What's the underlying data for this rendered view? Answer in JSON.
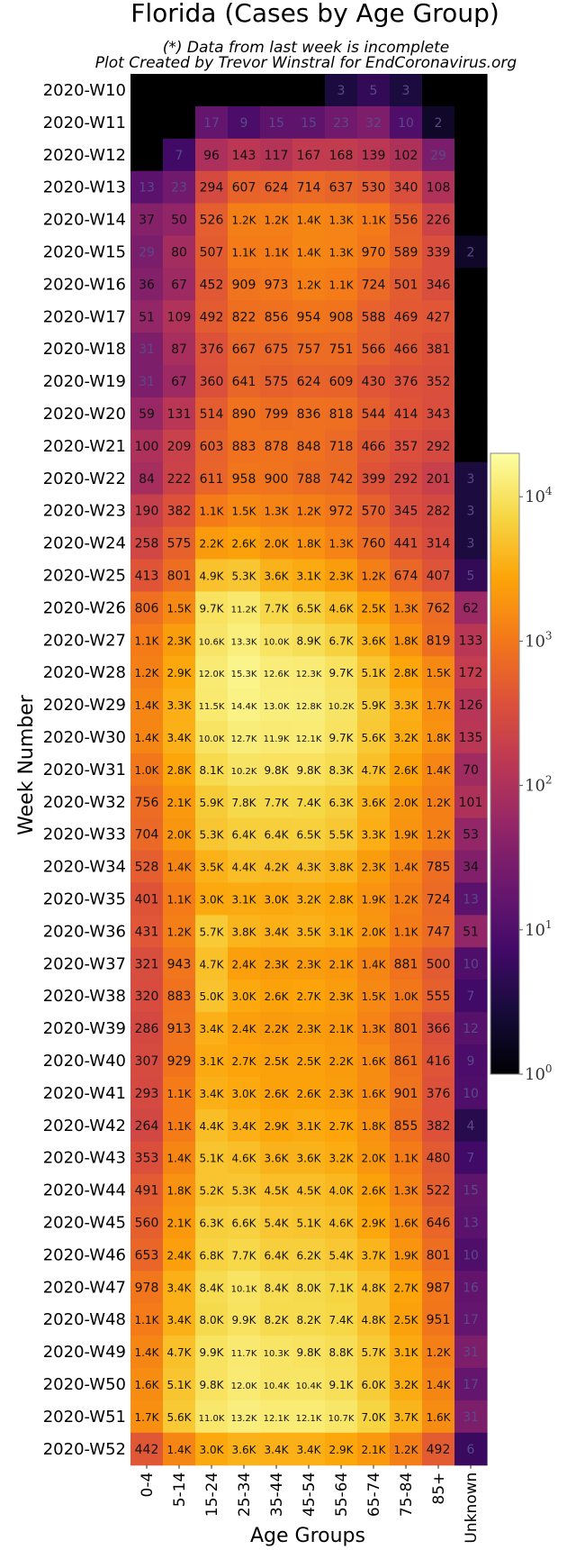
{
  "chart_data": {
    "type": "heatmap",
    "title": "Florida (Cases by Age Group)",
    "subtitle_lines": [
      "(*) Data from last week is incomplete",
      "Plot Created by Trevor Winstral for EndCoronavirus.org"
    ],
    "xlabel": "Age Groups",
    "ylabel": "Week Number",
    "x_categories": [
      "0-4",
      "5-14",
      "15-24",
      "25-34",
      "35-44",
      "45-54",
      "55-64",
      "65-74",
      "75-84",
      "85+",
      "Unknown"
    ],
    "y_categories": [
      "2020-W10",
      "2020-W11",
      "2020-W12",
      "2020-W13",
      "2020-W14",
      "2020-W15",
      "2020-W16",
      "2020-W17",
      "2020-W18",
      "2020-W19",
      "2020-W20",
      "2020-W21",
      "2020-W22",
      "2020-W23",
      "2020-W24",
      "2020-W25",
      "2020-W26",
      "2020-W27",
      "2020-W28",
      "2020-W29",
      "2020-W30",
      "2020-W31",
      "2020-W32",
      "2020-W33",
      "2020-W34",
      "2020-W35",
      "2020-W36",
      "2020-W37",
      "2020-W38",
      "2020-W39",
      "2020-W40",
      "2020-W41",
      "2020-W42",
      "2020-W43",
      "2020-W44",
      "2020-W45",
      "2020-W46",
      "2020-W47",
      "2020-W48",
      "2020-W49",
      "2020-W50",
      "2020-W51",
      "2020-W52"
    ],
    "values": [
      [
        null,
        null,
        null,
        null,
        null,
        null,
        3,
        5,
        3,
        null,
        null
      ],
      [
        null,
        null,
        17,
        9,
        15,
        15,
        23,
        32,
        10,
        2,
        null
      ],
      [
        null,
        7,
        96,
        143,
        117,
        167,
        168,
        139,
        102,
        29,
        null
      ],
      [
        13,
        23,
        294,
        607,
        624,
        714,
        637,
        530,
        340,
        108,
        null
      ],
      [
        37,
        50,
        526,
        1200,
        1200,
        1400,
        1300,
        1100,
        556,
        226,
        null
      ],
      [
        29,
        80,
        507,
        1100,
        1100,
        1400,
        1300,
        970,
        589,
        339,
        2
      ],
      [
        36,
        67,
        452,
        909,
        973,
        1200,
        1100,
        724,
        501,
        346,
        null
      ],
      [
        51,
        109,
        492,
        822,
        856,
        954,
        908,
        588,
        469,
        427,
        null
      ],
      [
        31,
        87,
        376,
        667,
        675,
        757,
        751,
        566,
        466,
        381,
        null
      ],
      [
        31,
        67,
        360,
        641,
        575,
        624,
        609,
        430,
        376,
        352,
        null
      ],
      [
        59,
        131,
        514,
        890,
        799,
        836,
        818,
        544,
        414,
        343,
        null
      ],
      [
        100,
        209,
        603,
        883,
        878,
        848,
        718,
        466,
        357,
        292,
        null
      ],
      [
        84,
        222,
        611,
        958,
        900,
        788,
        742,
        399,
        292,
        201,
        3
      ],
      [
        190,
        382,
        1100,
        1500,
        1300,
        1200,
        972,
        570,
        345,
        282,
        3
      ],
      [
        258,
        575,
        2200,
        2600,
        2000,
        1800,
        1300,
        760,
        441,
        314,
        3
      ],
      [
        413,
        801,
        4900,
        5300,
        3600,
        3100,
        2300,
        1200,
        674,
        407,
        5
      ],
      [
        806,
        1500,
        9700,
        11200,
        7700,
        6500,
        4600,
        2500,
        1300,
        762,
        62
      ],
      [
        1100,
        2300,
        10600,
        13300,
        10000,
        8900,
        6700,
        3600,
        1800,
        819,
        133
      ],
      [
        1200,
        2900,
        12000,
        15300,
        12600,
        12300,
        9700,
        5100,
        2800,
        1500,
        172
      ],
      [
        1400,
        3300,
        11500,
        14400,
        13000,
        12800,
        10200,
        5900,
        3300,
        1700,
        126
      ],
      [
        1400,
        3400,
        10000,
        12700,
        11900,
        12100,
        9700,
        5600,
        3200,
        1800,
        135
      ],
      [
        1000,
        2800,
        8100,
        10200,
        9800,
        9800,
        8300,
        4700,
        2600,
        1400,
        70
      ],
      [
        756,
        2100,
        5900,
        7800,
        7700,
        7400,
        6300,
        3600,
        2000,
        1200,
        101
      ],
      [
        704,
        2000,
        5300,
        6400,
        6400,
        6500,
        5500,
        3300,
        1900,
        1200,
        53
      ],
      [
        528,
        1400,
        3500,
        4400,
        4200,
        4300,
        3800,
        2300,
        1400,
        785,
        34
      ],
      [
        401,
        1100,
        3000,
        3100,
        3000,
        3200,
        2800,
        1900,
        1200,
        724,
        13
      ],
      [
        431,
        1200,
        5700,
        3800,
        3400,
        3500,
        3100,
        2000,
        1100,
        747,
        51
      ],
      [
        321,
        943,
        4700,
        2400,
        2300,
        2300,
        2100,
        1400,
        881,
        500,
        10
      ],
      [
        320,
        883,
        5000,
        3000,
        2600,
        2700,
        2300,
        1500,
        1000,
        555,
        7
      ],
      [
        286,
        913,
        3400,
        2400,
        2200,
        2300,
        2100,
        1300,
        801,
        366,
        12
      ],
      [
        307,
        929,
        3100,
        2700,
        2500,
        2500,
        2200,
        1600,
        861,
        416,
        9
      ],
      [
        293,
        1100,
        3400,
        3000,
        2600,
        2600,
        2300,
        1600,
        901,
        376,
        10
      ],
      [
        264,
        1100,
        4400,
        3400,
        2900,
        3100,
        2700,
        1800,
        855,
        382,
        4
      ],
      [
        353,
        1400,
        5100,
        4600,
        3600,
        3600,
        3200,
        2000,
        1100,
        480,
        7
      ],
      [
        491,
        1800,
        5200,
        5300,
        4500,
        4500,
        4000,
        2600,
        1300,
        522,
        15
      ],
      [
        560,
        2100,
        6300,
        6600,
        5400,
        5100,
        4600,
        2900,
        1600,
        646,
        13
      ],
      [
        653,
        2400,
        6800,
        7700,
        6400,
        6200,
        5400,
        3700,
        1900,
        801,
        10
      ],
      [
        978,
        3400,
        8400,
        10100,
        8400,
        8000,
        7100,
        4800,
        2700,
        987,
        16
      ],
      [
        1100,
        3400,
        8000,
        9900,
        8200,
        8200,
        7400,
        4800,
        2500,
        951,
        17
      ],
      [
        1400,
        4700,
        9900,
        11700,
        10300,
        9800,
        8800,
        5700,
        3100,
        1200,
        31
      ],
      [
        1600,
        5100,
        9800,
        12000,
        10400,
        10400,
        9100,
        6000,
        3200,
        1400,
        17
      ],
      [
        1700,
        5600,
        11000,
        13200,
        12100,
        12100,
        10700,
        7000,
        3700,
        1600,
        31
      ],
      [
        442,
        1400,
        3000,
        3600,
        3400,
        3400,
        2900,
        2100,
        1200,
        492,
        6
      ]
    ],
    "cell_labels": [
      [
        "",
        "",
        "",
        "",
        "",
        "",
        "3",
        "5",
        "3",
        "",
        ""
      ],
      [
        "",
        "",
        "17",
        "9",
        "15",
        "15",
        "23",
        "32",
        "10",
        "2",
        ""
      ],
      [
        "",
        "7",
        "96",
        "143",
        "117",
        "167",
        "168",
        "139",
        "102",
        "29",
        ""
      ],
      [
        "13",
        "23",
        "294",
        "607",
        "624",
        "714",
        "637",
        "530",
        "340",
        "108",
        ""
      ],
      [
        "37",
        "50",
        "526",
        "1.2K",
        "1.2K",
        "1.4K",
        "1.3K",
        "1.1K",
        "556",
        "226",
        ""
      ],
      [
        "29",
        "80",
        "507",
        "1.1K",
        "1.1K",
        "1.4K",
        "1.3K",
        "970",
        "589",
        "339",
        "2"
      ],
      [
        "36",
        "67",
        "452",
        "909",
        "973",
        "1.2K",
        "1.1K",
        "724",
        "501",
        "346",
        ""
      ],
      [
        "51",
        "109",
        "492",
        "822",
        "856",
        "954",
        "908",
        "588",
        "469",
        "427",
        ""
      ],
      [
        "31",
        "87",
        "376",
        "667",
        "675",
        "757",
        "751",
        "566",
        "466",
        "381",
        ""
      ],
      [
        "31",
        "67",
        "360",
        "641",
        "575",
        "624",
        "609",
        "430",
        "376",
        "352",
        ""
      ],
      [
        "59",
        "131",
        "514",
        "890",
        "799",
        "836",
        "818",
        "544",
        "414",
        "343",
        ""
      ],
      [
        "100",
        "209",
        "603",
        "883",
        "878",
        "848",
        "718",
        "466",
        "357",
        "292",
        ""
      ],
      [
        "84",
        "222",
        "611",
        "958",
        "900",
        "788",
        "742",
        "399",
        "292",
        "201",
        "3"
      ],
      [
        "190",
        "382",
        "1.1K",
        "1.5K",
        "1.3K",
        "1.2K",
        "972",
        "570",
        "345",
        "282",
        "3"
      ],
      [
        "258",
        "575",
        "2.2K",
        "2.6K",
        "2.0K",
        "1.8K",
        "1.3K",
        "760",
        "441",
        "314",
        "3"
      ],
      [
        "413",
        "801",
        "4.9K",
        "5.3K",
        "3.6K",
        "3.1K",
        "2.3K",
        "1.2K",
        "674",
        "407",
        "5"
      ],
      [
        "806",
        "1.5K",
        "9.7K",
        "11.2K",
        "7.7K",
        "6.5K",
        "4.6K",
        "2.5K",
        "1.3K",
        "762",
        "62"
      ],
      [
        "1.1K",
        "2.3K",
        "10.6K",
        "13.3K",
        "10.0K",
        "8.9K",
        "6.7K",
        "3.6K",
        "1.8K",
        "819",
        "133"
      ],
      [
        "1.2K",
        "2.9K",
        "12.0K",
        "15.3K",
        "12.6K",
        "12.3K",
        "9.7K",
        "5.1K",
        "2.8K",
        "1.5K",
        "172"
      ],
      [
        "1.4K",
        "3.3K",
        "11.5K",
        "14.4K",
        "13.0K",
        "12.8K",
        "10.2K",
        "5.9K",
        "3.3K",
        "1.7K",
        "126"
      ],
      [
        "1.4K",
        "3.4K",
        "10.0K",
        "12.7K",
        "11.9K",
        "12.1K",
        "9.7K",
        "5.6K",
        "3.2K",
        "1.8K",
        "135"
      ],
      [
        "1.0K",
        "2.8K",
        "8.1K",
        "10.2K",
        "9.8K",
        "9.8K",
        "8.3K",
        "4.7K",
        "2.6K",
        "1.4K",
        "70"
      ],
      [
        "756",
        "2.1K",
        "5.9K",
        "7.8K",
        "7.7K",
        "7.4K",
        "6.3K",
        "3.6K",
        "2.0K",
        "1.2K",
        "101"
      ],
      [
        "704",
        "2.0K",
        "5.3K",
        "6.4K",
        "6.4K",
        "6.5K",
        "5.5K",
        "3.3K",
        "1.9K",
        "1.2K",
        "53"
      ],
      [
        "528",
        "1.4K",
        "3.5K",
        "4.4K",
        "4.2K",
        "4.3K",
        "3.8K",
        "2.3K",
        "1.4K",
        "785",
        "34"
      ],
      [
        "401",
        "1.1K",
        "3.0K",
        "3.1K",
        "3.0K",
        "3.2K",
        "2.8K",
        "1.9K",
        "1.2K",
        "724",
        "13"
      ],
      [
        "431",
        "1.2K",
        "5.7K",
        "3.8K",
        "3.4K",
        "3.5K",
        "3.1K",
        "2.0K",
        "1.1K",
        "747",
        "51"
      ],
      [
        "321",
        "943",
        "4.7K",
        "2.4K",
        "2.3K",
        "2.3K",
        "2.1K",
        "1.4K",
        "881",
        "500",
        "10"
      ],
      [
        "320",
        "883",
        "5.0K",
        "3.0K",
        "2.6K",
        "2.7K",
        "2.3K",
        "1.5K",
        "1.0K",
        "555",
        "7"
      ],
      [
        "286",
        "913",
        "3.4K",
        "2.4K",
        "2.2K",
        "2.3K",
        "2.1K",
        "1.3K",
        "801",
        "366",
        "12"
      ],
      [
        "307",
        "929",
        "3.1K",
        "2.7K",
        "2.5K",
        "2.5K",
        "2.2K",
        "1.6K",
        "861",
        "416",
        "9"
      ],
      [
        "293",
        "1.1K",
        "3.4K",
        "3.0K",
        "2.6K",
        "2.6K",
        "2.3K",
        "1.6K",
        "901",
        "376",
        "10"
      ],
      [
        "264",
        "1.1K",
        "4.4K",
        "3.4K",
        "2.9K",
        "3.1K",
        "2.7K",
        "1.8K",
        "855",
        "382",
        "4"
      ],
      [
        "353",
        "1.4K",
        "5.1K",
        "4.6K",
        "3.6K",
        "3.6K",
        "3.2K",
        "2.0K",
        "1.1K",
        "480",
        "7"
      ],
      [
        "491",
        "1.8K",
        "5.2K",
        "5.3K",
        "4.5K",
        "4.5K",
        "4.0K",
        "2.6K",
        "1.3K",
        "522",
        "15"
      ],
      [
        "560",
        "2.1K",
        "6.3K",
        "6.6K",
        "5.4K",
        "5.1K",
        "4.6K",
        "2.9K",
        "1.6K",
        "646",
        "13"
      ],
      [
        "653",
        "2.4K",
        "6.8K",
        "7.7K",
        "6.4K",
        "6.2K",
        "5.4K",
        "3.7K",
        "1.9K",
        "801",
        "10"
      ],
      [
        "978",
        "3.4K",
        "8.4K",
        "10.1K",
        "8.4K",
        "8.0K",
        "7.1K",
        "4.8K",
        "2.7K",
        "987",
        "16"
      ],
      [
        "1.1K",
        "3.4K",
        "8.0K",
        "9.9K",
        "8.2K",
        "8.2K",
        "7.4K",
        "4.8K",
        "2.5K",
        "951",
        "17"
      ],
      [
        "1.4K",
        "4.7K",
        "9.9K",
        "11.7K",
        "10.3K",
        "9.8K",
        "8.8K",
        "5.7K",
        "3.1K",
        "1.2K",
        "31"
      ],
      [
        "1.6K",
        "5.1K",
        "9.8K",
        "12.0K",
        "10.4K",
        "10.4K",
        "9.1K",
        "6.0K",
        "3.2K",
        "1.4K",
        "17"
      ],
      [
        "1.7K",
        "5.6K",
        "11.0K",
        "13.2K",
        "12.1K",
        "12.1K",
        "10.7K",
        "7.0K",
        "3.7K",
        "1.6K",
        "31"
      ],
      [
        "442",
        "1.4K",
        "3.0K",
        "3.6K",
        "3.4K",
        "3.4K",
        "2.9K",
        "2.1K",
        "1.2K",
        "492",
        "6"
      ]
    ],
    "color_scale": {
      "type": "log",
      "colormap": "inferno",
      "range": [
        1,
        20000
      ],
      "tick_labels": [
        {
          "base": "10",
          "exp": "0",
          "value": 1
        },
        {
          "base": "10",
          "exp": "1",
          "value": 10
        },
        {
          "base": "10",
          "exp": "2",
          "value": 100
        },
        {
          "base": "10",
          "exp": "3",
          "value": 1000
        },
        {
          "base": "10",
          "exp": "4",
          "value": 10000
        }
      ]
    },
    "grid": false,
    "colorbar_position": "right"
  }
}
